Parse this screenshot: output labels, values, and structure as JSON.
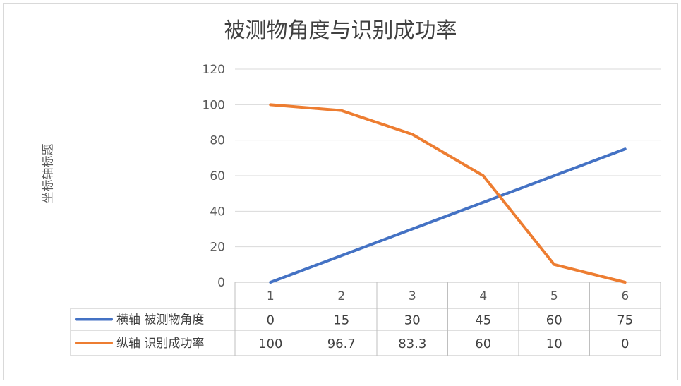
{
  "chart_data": {
    "type": "line",
    "title": "被测物角度与识别成功率",
    "ylabel": "坐标轴标题",
    "categories": [
      "1",
      "2",
      "3",
      "4",
      "5",
      "6"
    ],
    "ylim": [
      0,
      120
    ],
    "yticks": [
      0,
      20,
      40,
      60,
      80,
      100,
      120
    ],
    "grid": true,
    "legend": "data-table",
    "series": [
      {
        "name": "横轴 被测物角度",
        "values": [
          0,
          15,
          30,
          45,
          60,
          75
        ],
        "color": "#4472c4"
      },
      {
        "name": "纵轴 识别成功率",
        "values": [
          100,
          96.7,
          83.3,
          60,
          10,
          0
        ],
        "color": "#ed7d31"
      }
    ],
    "table_labels": [
      [
        "0",
        "15",
        "30",
        "45",
        "60",
        "75"
      ],
      [
        "100",
        "96.7",
        "83.3",
        "60",
        "10",
        "0"
      ]
    ]
  }
}
